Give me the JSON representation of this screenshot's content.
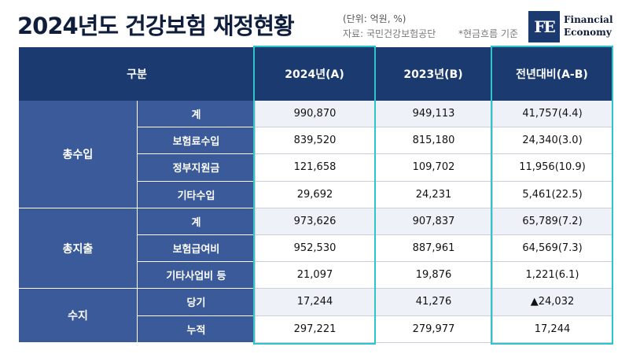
{
  "header": {
    "title": "2024년도 건강보험 재정현황",
    "unit": "(단위: 억원, %)",
    "source": "자료: 국민건강보험공단",
    "note": "*현금흐름 기준"
  },
  "logo": {
    "mark": "FE",
    "line1": "Financial",
    "line2": "Economy"
  },
  "table": {
    "headers": [
      "구분",
      "2024년(A)",
      "2023년(B)",
      "전년대비(A-B)"
    ],
    "groups": [
      {
        "label": "총수입",
        "rows": [
          {
            "label": "계",
            "v2024": "990,870",
            "v2023": "949,113",
            "diff": "41,757(4.4)"
          },
          {
            "label": "보험료수입",
            "v2024": "839,520",
            "v2023": "815,180",
            "diff": "24,340(3.0)"
          },
          {
            "label": "정부지원금",
            "v2024": "121,658",
            "v2023": "109,702",
            "diff": "11,956(10.9)"
          },
          {
            "label": "기타수입",
            "v2024": "29,692",
            "v2023": "24,231",
            "diff": "5,461(22.5)"
          }
        ]
      },
      {
        "label": "총지출",
        "rows": [
          {
            "label": "계",
            "v2024": "973,626",
            "v2023": "907,837",
            "diff": "65,789(7.2)"
          },
          {
            "label": "보험급여비",
            "v2024": "952,530",
            "v2023": "887,961",
            "diff": "64,569(7.3)"
          },
          {
            "label": "기타사업비 등",
            "v2024": "21,097",
            "v2023": "19,876",
            "diff": "1,221(6.1)"
          }
        ]
      },
      {
        "label": "수지",
        "rows": [
          {
            "label": "당기",
            "v2024": "17,244",
            "v2023": "41,276",
            "diff": "▲24,032"
          },
          {
            "label": "누적",
            "v2024": "297,221",
            "v2023": "279,977",
            "diff": "17,244"
          }
        ]
      }
    ]
  }
}
